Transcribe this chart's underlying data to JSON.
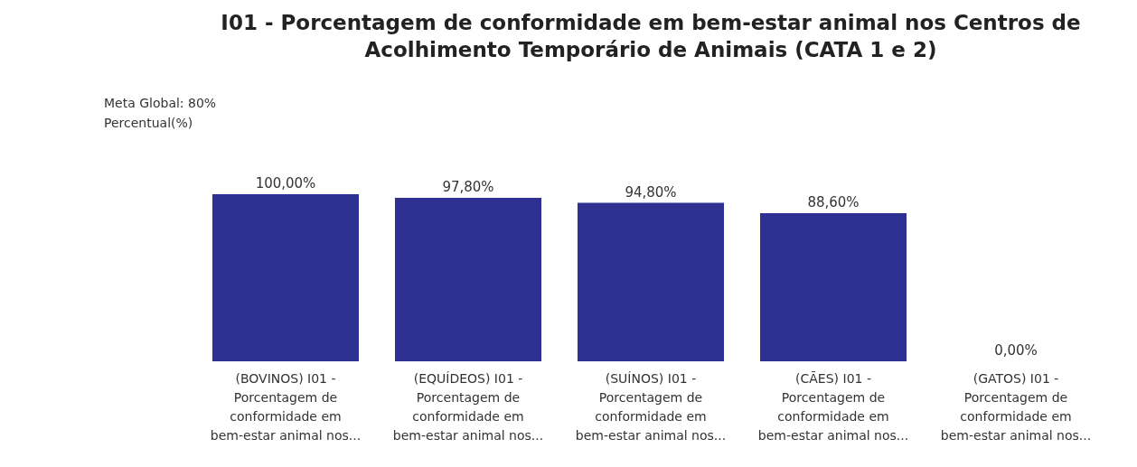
{
  "chart_data": {
    "type": "bar",
    "title": "I01 - Porcentagem de conformidade em bem-estar animal nos Centros de Acolhimento Temporário de Animais (CATA 1 e 2)",
    "annotations": [
      "Meta Global: 80%",
      "Percentual(%)"
    ],
    "categories": [
      "(BOVINOS) I01 - Porcentagem de conformidade em bem-estar animal nos...",
      "(EQUÍDEOS) I01 - Porcentagem de conformidade em bem-estar animal nos...",
      "(SUÍNOS) I01 - Porcentagem de conformidade em bem-estar animal nos...",
      "(CÃES) I01 - Porcentagem de conformidade em bem-estar animal nos...",
      "(GATOS) I01 - Porcentagem de conformidade em bem-estar animal nos..."
    ],
    "values": [
      100,
      97.8,
      94.8,
      88.6,
      0
    ],
    "value_labels": [
      "100,00%",
      "97,80%",
      "94,80%",
      "88,60%",
      "0,00%"
    ],
    "color": "#2e3192"
  }
}
